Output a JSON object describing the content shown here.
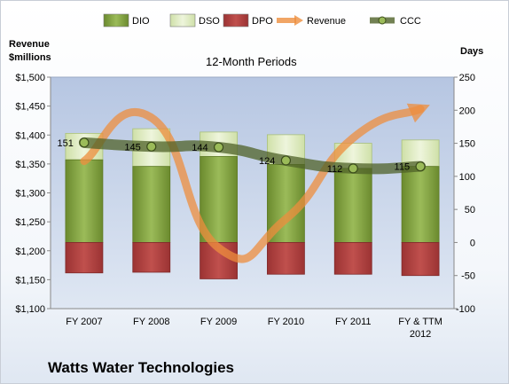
{
  "chart_data": {
    "type": "bar",
    "subtitle": "12-Month Periods",
    "left_axis_label": [
      "Revenue",
      "$millions"
    ],
    "right_axis_label": "Days",
    "company": "Watts Water Technologies",
    "categories": [
      [
        "FY 2007"
      ],
      [
        "FY 2008"
      ],
      [
        "FY 2009"
      ],
      [
        "FY 2010"
      ],
      [
        "FY 2011"
      ],
      [
        "FY & TTM",
        "2012"
      ]
    ],
    "left_axis": {
      "min": 1100,
      "max": 1500,
      "step": 50,
      "prefix": "$"
    },
    "right_axis": {
      "min": -100,
      "max": 250,
      "step": 50
    },
    "grid": false,
    "legend_position": "top",
    "series": [
      {
        "name": "DIO",
        "kind": "stacked-bar",
        "axis": "right",
        "values": [
          125,
          115,
          130,
          118,
          112,
          115
        ],
        "color": "#7a9a3a"
      },
      {
        "name": "DSO",
        "kind": "stacked-bar",
        "axis": "right",
        "values": [
          40,
          57,
          37,
          45,
          38,
          40
        ],
        "color": "#e0edc0"
      },
      {
        "name": "DPO",
        "kind": "bar-negative",
        "axis": "right",
        "values": [
          -46,
          -45,
          -55,
          -48,
          -48,
          -50
        ],
        "color": "#b54848"
      },
      {
        "name": "Revenue",
        "kind": "line",
        "axis": "left",
        "values": [
          1355,
          1430,
          1205,
          1255,
          1395,
          1445
        ],
        "color": "#ed8e3e"
      },
      {
        "name": "CCC",
        "kind": "line",
        "axis": "right",
        "values": [
          151,
          145,
          144,
          124,
          112,
          115
        ],
        "labels": [
          "151",
          "145",
          "144",
          "124",
          "112",
          "115"
        ],
        "color": "#4f6228"
      }
    ]
  }
}
